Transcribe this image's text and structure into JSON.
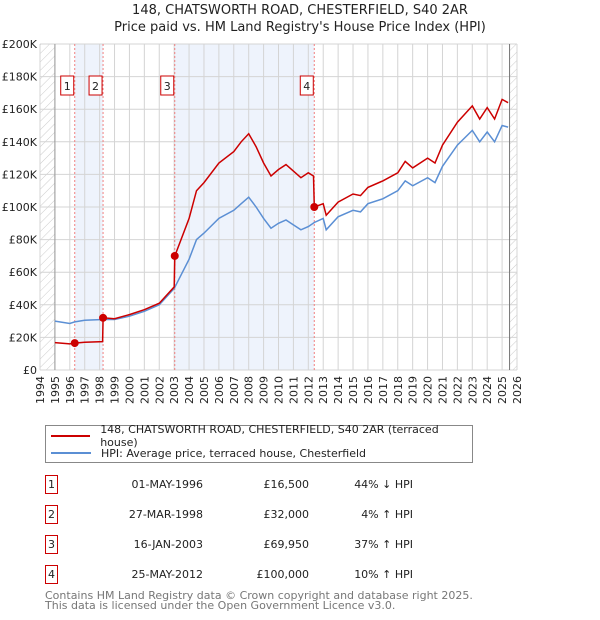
{
  "chart_data": {
    "type": "line",
    "title": "148, CHATSWORTH ROAD, CHESTERFIELD, S40 2AR",
    "subtitle": "Price paid vs. HM Land Registry's House Price Index (HPI)",
    "xlim": [
      1994,
      2026
    ],
    "ylim": [
      0,
      200000
    ],
    "y_ticks": [
      {
        "v": 0,
        "label": "£0"
      },
      {
        "v": 20000,
        "label": "£20K"
      },
      {
        "v": 40000,
        "label": "£40K"
      },
      {
        "v": 60000,
        "label": "£60K"
      },
      {
        "v": 80000,
        "label": "£80K"
      },
      {
        "v": 100000,
        "label": "£100K"
      },
      {
        "v": 120000,
        "label": "£120K"
      },
      {
        "v": 140000,
        "label": "£140K"
      },
      {
        "v": 160000,
        "label": "£160K"
      },
      {
        "v": 180000,
        "label": "£180K"
      },
      {
        "v": 200000,
        "label": "£200K"
      }
    ],
    "x_ticks": [
      "1994",
      "1995",
      "1996",
      "1997",
      "1998",
      "1999",
      "2000",
      "2001",
      "2002",
      "2003",
      "2004",
      "2005",
      "2006",
      "2007",
      "2008",
      "2009",
      "2010",
      "2011",
      "2012",
      "2013",
      "2014",
      "2015",
      "2016",
      "2017",
      "2018",
      "2019",
      "2020",
      "2021",
      "2022",
      "2023",
      "2024",
      "2025",
      "2026"
    ],
    "grid": true,
    "series": [
      {
        "name": "148, CHATSWORTH ROAD, CHESTERFIELD, S40 2AR (terraced house)",
        "color": "#cc0000",
        "x": [
          1995,
          1996,
          1996.33,
          1997,
          1998.2,
          1998.23,
          1999,
          2000,
          2001,
          2002,
          2003.0,
          2003.04,
          2004,
          2004.5,
          2005,
          2006,
          2007,
          2007.5,
          2008,
          2008.5,
          2009,
          2009.5,
          2010,
          2010.5,
          2011,
          2011.5,
          2012,
          2012.35,
          2012.4,
          2013,
          2013.2,
          2014,
          2015,
          2015.5,
          2016,
          2017,
          2018,
          2018.5,
          2019,
          2020,
          2020.5,
          2021,
          2022,
          2023,
          2023.5,
          2024,
          2024.5,
          2025,
          2025.4
        ],
        "y": [
          16800,
          16000,
          16500,
          17000,
          17400,
          32000,
          31500,
          34000,
          37000,
          41000,
          51000,
          69950,
          93000,
          110000,
          115000,
          127000,
          134000,
          140000,
          145000,
          137000,
          127000,
          119000,
          123000,
          126000,
          122000,
          118000,
          121000,
          119000,
          100000,
          102000,
          95000,
          103000,
          108000,
          107000,
          112000,
          116000,
          121000,
          128000,
          124000,
          130000,
          127000,
          138000,
          152000,
          162000,
          154000,
          161000,
          154000,
          166000,
          164000
        ]
      },
      {
        "name": "HPI: Average price, terraced house, Chesterfield",
        "color": "#5b8fd4",
        "x": [
          1995,
          1996,
          1996.33,
          1997,
          1998.2,
          1999,
          2000,
          2001,
          2002,
          2003,
          2004,
          2004.5,
          2005,
          2006,
          2007,
          2007.5,
          2008,
          2008.5,
          2009,
          2009.5,
          2010,
          2010.5,
          2011,
          2011.5,
          2012,
          2012.4,
          2013,
          2013.2,
          2014,
          2015,
          2015.5,
          2016,
          2017,
          2018,
          2018.5,
          2019,
          2020,
          2020.5,
          2021,
          2022,
          2023,
          2023.5,
          2024,
          2024.5,
          2025,
          2025.4
        ],
        "y": [
          30000,
          28500,
          29500,
          30500,
          31000,
          31000,
          33000,
          36000,
          40000,
          50000,
          68000,
          80000,
          84000,
          93000,
          98000,
          102000,
          106000,
          100000,
          93000,
          87000,
          90000,
          92000,
          89000,
          86000,
          88000,
          90500,
          93000,
          86000,
          94000,
          98000,
          97000,
          102000,
          105000,
          110000,
          116000,
          113000,
          118000,
          115000,
          125000,
          138000,
          147000,
          140000,
          146000,
          140000,
          150000,
          149000
        ]
      }
    ],
    "sales": [
      {
        "n": "1",
        "date": "01-MAY-1996",
        "x": 1996.33,
        "price_value": 16500,
        "price": "£16,500",
        "hpi": "44% ↓ HPI"
      },
      {
        "n": "2",
        "date": "27-MAR-1998",
        "x": 1998.23,
        "price_value": 32000,
        "price": "£32,000",
        "hpi": "4% ↑ HPI"
      },
      {
        "n": "3",
        "date": "16-JAN-2003",
        "x": 2003.04,
        "price_value": 69950,
        "price": "£69,950",
        "hpi": "37% ↑ HPI"
      },
      {
        "n": "4",
        "date": "25-MAY-2012",
        "x": 2012.4,
        "price_value": 100000,
        "price": "£100,000",
        "hpi": "10% ↑ HPI"
      }
    ],
    "hatched_before": 1995,
    "hatched_after": 2025.5,
    "legend_placement": "below"
  },
  "footer": {
    "line1": "Contains HM Land Registry data © Crown copyright and database right 2025.",
    "line2": "This data is licensed under the Open Government Licence v3.0."
  }
}
